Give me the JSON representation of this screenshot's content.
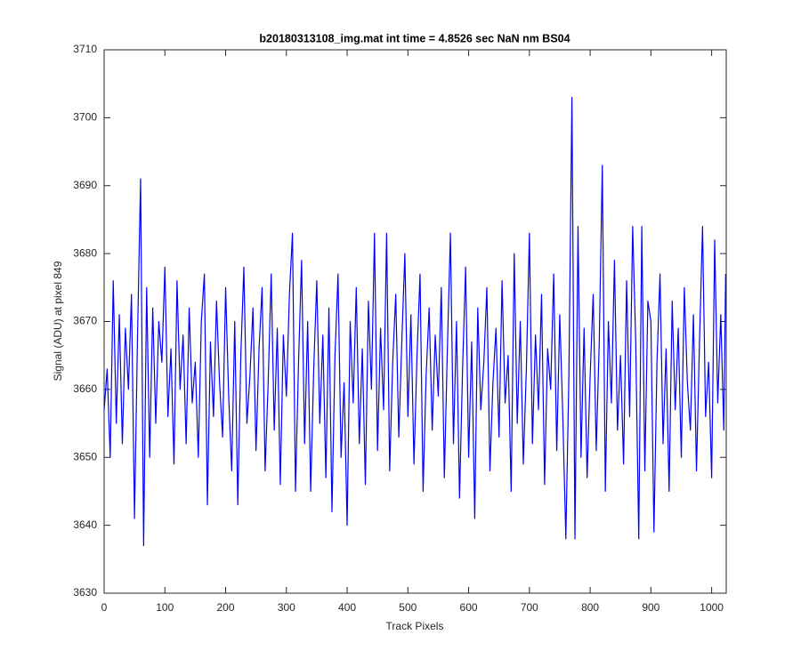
{
  "chart_data": {
    "type": "line",
    "title": "b20180313108_img.mat int time = 4.8526 sec  NaN nm BS04",
    "x_label": "Track Pixels",
    "y_label": "Signal (ADU) at pixel 849",
    "color": "#0000ff",
    "xlim": [
      0,
      1024
    ],
    "ylim": [
      3630,
      3710
    ],
    "xticks": [
      0,
      100,
      200,
      300,
      400,
      500,
      600,
      700,
      800,
      900,
      1000
    ],
    "yticks": [
      3630,
      3640,
      3650,
      3660,
      3670,
      3680,
      3690,
      3700,
      3710
    ],
    "x": [
      0,
      5,
      10,
      15,
      20,
      25,
      30,
      35,
      40,
      45,
      50,
      55,
      60,
      65,
      70,
      75,
      80,
      85,
      90,
      95,
      100,
      105,
      110,
      115,
      120,
      125,
      130,
      135,
      140,
      145,
      150,
      155,
      160,
      165,
      170,
      175,
      180,
      185,
      190,
      195,
      200,
      205,
      210,
      215,
      220,
      225,
      230,
      235,
      240,
      245,
      250,
      255,
      260,
      265,
      270,
      275,
      280,
      285,
      290,
      295,
      300,
      305,
      310,
      315,
      320,
      325,
      330,
      335,
      340,
      345,
      350,
      355,
      360,
      365,
      370,
      375,
      380,
      385,
      390,
      395,
      400,
      405,
      410,
      415,
      420,
      425,
      430,
      435,
      440,
      445,
      450,
      455,
      460,
      465,
      470,
      475,
      480,
      485,
      490,
      495,
      500,
      505,
      510,
      515,
      520,
      525,
      530,
      535,
      540,
      545,
      550,
      555,
      560,
      565,
      570,
      575,
      580,
      585,
      590,
      595,
      600,
      605,
      610,
      615,
      620,
      625,
      630,
      635,
      640,
      645,
      650,
      655,
      660,
      665,
      670,
      675,
      680,
      685,
      690,
      695,
      700,
      705,
      710,
      715,
      720,
      725,
      730,
      735,
      740,
      745,
      750,
      755,
      760,
      765,
      770,
      775,
      780,
      785,
      790,
      795,
      800,
      805,
      810,
      815,
      820,
      825,
      830,
      835,
      840,
      845,
      850,
      855,
      860,
      865,
      870,
      875,
      880,
      885,
      890,
      895,
      900,
      905,
      910,
      915,
      920,
      925,
      930,
      935,
      940,
      945,
      950,
      955,
      960,
      965,
      970,
      975,
      980,
      985,
      990,
      995,
      1000,
      1005,
      1010,
      1015,
      1020,
      1023
    ],
    "values": [
      3657,
      3663,
      3650,
      3676,
      3655,
      3671,
      3652,
      3669,
      3660,
      3674,
      3641,
      3668,
      3691,
      3637,
      3675,
      3650,
      3672,
      3655,
      3670,
      3664,
      3678,
      3656,
      3666,
      3649,
      3676,
      3660,
      3668,
      3652,
      3672,
      3658,
      3664,
      3650,
      3670,
      3677,
      3643,
      3667,
      3656,
      3673,
      3661,
      3653,
      3675,
      3659,
      3648,
      3670,
      3643,
      3665,
      3678,
      3655,
      3662,
      3672,
      3651,
      3666,
      3675,
      3648,
      3661,
      3677,
      3654,
      3669,
      3646,
      3668,
      3659,
      3674,
      3683,
      3645,
      3664,
      3679,
      3652,
      3670,
      3645,
      3663,
      3676,
      3655,
      3668,
      3647,
      3672,
      3642,
      3665,
      3677,
      3650,
      3661,
      3640,
      3670,
      3658,
      3675,
      3652,
      3666,
      3646,
      3673,
      3660,
      3683,
      3651,
      3669,
      3657,
      3683,
      3648,
      3664,
      3674,
      3653,
      3667,
      3680,
      3656,
      3671,
      3649,
      3665,
      3677,
      3645,
      3662,
      3672,
      3654,
      3668,
      3659,
      3675,
      3647,
      3666,
      3683,
      3652,
      3670,
      3644,
      3663,
      3678,
      3650,
      3667,
      3641,
      3672,
      3657,
      3664,
      3675,
      3648,
      3661,
      3669,
      3653,
      3676,
      3658,
      3665,
      3645,
      3680,
      3655,
      3670,
      3649,
      3663,
      3683,
      3652,
      3668,
      3657,
      3674,
      3646,
      3666,
      3660,
      3677,
      3651,
      3671,
      3656,
      3638,
      3662,
      3703,
      3638,
      3684,
      3650,
      3669,
      3647,
      3662,
      3674,
      3651,
      3667,
      3693,
      3645,
      3670,
      3658,
      3679,
      3654,
      3665,
      3649,
      3676,
      3656,
      3684,
      3667,
      3638,
      3684,
      3648,
      3673,
      3670,
      3639,
      3664,
      3677,
      3652,
      3666,
      3645,
      3673,
      3657,
      3669,
      3650,
      3675,
      3661,
      3654,
      3671,
      3648,
      3667,
      3684,
      3656,
      3664,
      3647,
      3682,
      3658,
      3671,
      3654,
      3677
    ]
  }
}
